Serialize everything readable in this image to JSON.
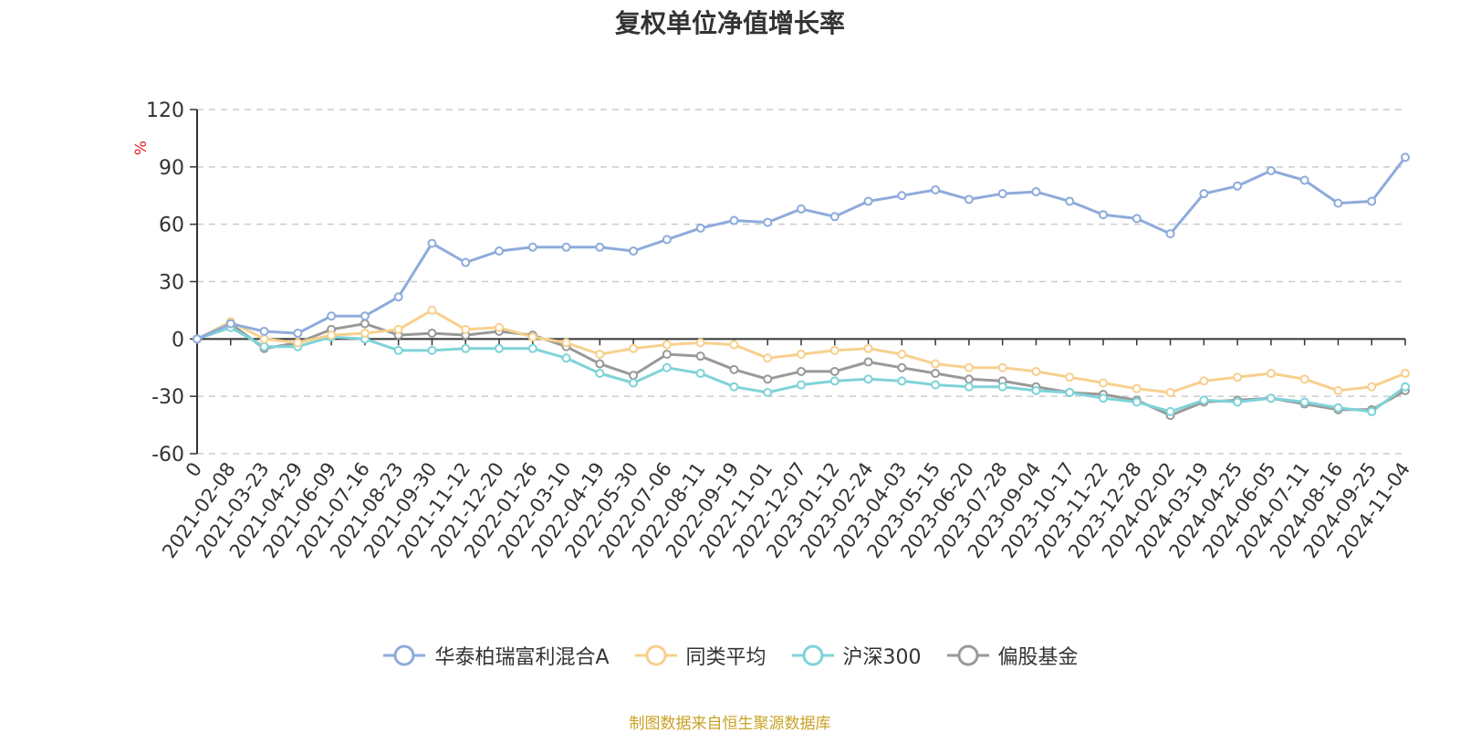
{
  "chart_data": {
    "type": "line",
    "title": "复权单位净值增长率",
    "ylabel": "%",
    "ylim": [
      -60,
      120
    ],
    "yticks": [
      120,
      90,
      60,
      30,
      0,
      -30,
      -60
    ],
    "grid": true,
    "legend_position": "bottom",
    "x_tick_labels": [
      "0",
      "2021-02-08",
      "2021-03-23",
      "2021-04-29",
      "2021-06-09",
      "2021-07-16",
      "2021-08-23",
      "2021-09-30",
      "2021-11-12",
      "2021-12-20",
      "2022-01-26",
      "2022-03-10",
      "2022-04-19",
      "2022-05-30",
      "2022-07-06",
      "2022-08-11",
      "2022-09-19",
      "2022-11-01",
      "2022-12-07",
      "2023-01-12",
      "2023-02-24",
      "2023-04-03",
      "2023-05-15",
      "2023-06-20",
      "2023-07-28",
      "2023-09-04",
      "2023-10-17",
      "2023-11-22",
      "2023-12-28",
      "2024-02-02",
      "2024-03-19",
      "2024-04-25",
      "2024-06-05",
      "2024-07-11",
      "2024-08-16",
      "2024-09-25",
      "2024-11-04"
    ],
    "x_index": [
      0,
      1,
      2,
      3,
      4,
      5,
      6,
      7,
      8,
      9,
      10,
      11,
      12,
      13,
      14,
      15,
      16,
      17,
      18,
      19,
      20,
      21,
      22,
      23,
      24,
      25,
      26,
      27,
      28,
      29,
      30,
      31,
      32,
      33,
      34,
      35,
      36
    ],
    "series": [
      {
        "name": "华泰柏瑞富利混合A",
        "color": "#8eabdb",
        "values": [
          0,
          8,
          4,
          3,
          12,
          12,
          22,
          50,
          40,
          46,
          48,
          48,
          48,
          46,
          52,
          58,
          62,
          61,
          68,
          64,
          72,
          75,
          78,
          73,
          76,
          77,
          72,
          65,
          63,
          55,
          76,
          80,
          88,
          83,
          71,
          72,
          95
        ]
      },
      {
        "name": "同类平均",
        "color": "#f7d08e",
        "values": [
          0,
          9,
          0,
          -2,
          2,
          3,
          5,
          15,
          5,
          6,
          1,
          -2,
          -8,
          -5,
          -3,
          -2,
          -3,
          -10,
          -8,
          -6,
          -5,
          -8,
          -13,
          -15,
          -15,
          -17,
          -20,
          -23,
          -26,
          -28,
          -22,
          -20,
          -18,
          -21,
          -27,
          -25,
          -18
        ]
      },
      {
        "name": "沪深300",
        "color": "#7fd3d8",
        "values": [
          0,
          6,
          -4,
          -4,
          1,
          0,
          -6,
          -6,
          -5,
          -5,
          -5,
          -10,
          -18,
          -23,
          -15,
          -18,
          -25,
          -28,
          -24,
          -22,
          -21,
          -22,
          -24,
          -25,
          -25,
          -27,
          -28,
          -31,
          -33,
          -38,
          -32,
          -33,
          -31,
          -33,
          -36,
          -38,
          -25
        ]
      },
      {
        "name": "偏股基金",
        "color": "#999999",
        "values": [
          0,
          8,
          -5,
          -2,
          5,
          8,
          2,
          3,
          2,
          4,
          2,
          -4,
          -13,
          -19,
          -8,
          -9,
          -16,
          -21,
          -17,
          -17,
          -12,
          -15,
          -18,
          -21,
          -22,
          -25,
          -28,
          -29,
          -32,
          -40,
          -33,
          -32,
          -31,
          -34,
          -37,
          -37,
          -27
        ]
      }
    ]
  },
  "source_note": "制图数据来自恒生聚源数据库",
  "colors": {
    "title": "#333333",
    "axis": "#333333",
    "grid": "#cccccc",
    "ylabel": "#e02020",
    "source_note": "#c9a227"
  }
}
